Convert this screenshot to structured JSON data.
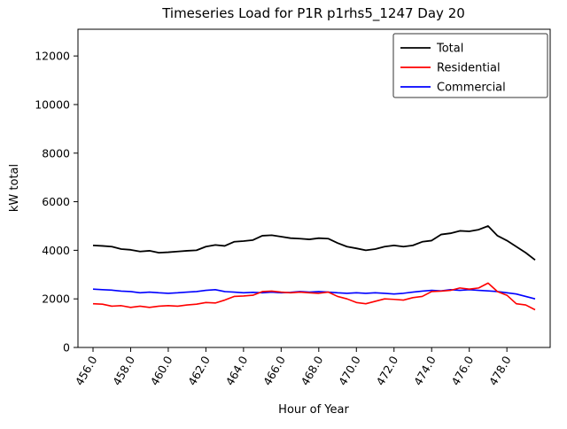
{
  "chart_data": {
    "type": "line",
    "title": "Timeseries Load for P1R p1rhs5_1247  Day 20",
    "xlabel": "Hour of Year",
    "ylabel": "kW total",
    "xlim": [
      455.2,
      480.3
    ],
    "ylim": [
      0,
      13100
    ],
    "grid": false,
    "legend_position": "upper right",
    "x_ticks": [
      456.0,
      458.0,
      460.0,
      462.0,
      464.0,
      466.0,
      468.0,
      470.0,
      472.0,
      474.0,
      476.0,
      478.0
    ],
    "y_ticks": [
      0,
      2000,
      4000,
      6000,
      8000,
      10000,
      12000
    ],
    "x": [
      456.0,
      456.5,
      457.0,
      457.5,
      458.0,
      458.5,
      459.0,
      459.5,
      460.0,
      460.5,
      461.0,
      461.5,
      462.0,
      462.5,
      463.0,
      463.5,
      464.0,
      464.5,
      465.0,
      465.5,
      466.0,
      466.5,
      467.0,
      467.5,
      468.0,
      468.5,
      469.0,
      469.5,
      470.0,
      470.5,
      471.0,
      471.5,
      472.0,
      472.5,
      473.0,
      473.5,
      474.0,
      474.5,
      475.0,
      475.5,
      476.0,
      476.5,
      477.0,
      477.5,
      478.0,
      478.5,
      479.0,
      479.5
    ],
    "series": [
      {
        "name": "Total",
        "color": "#000000",
        "values": [
          4200,
          4180,
          4150,
          4050,
          4020,
          3950,
          3980,
          3900,
          3920,
          3950,
          3980,
          4000,
          4150,
          4220,
          4180,
          4350,
          4380,
          4420,
          4600,
          4620,
          4560,
          4500,
          4480,
          4450,
          4500,
          4480,
          4300,
          4150,
          4080,
          4000,
          4050,
          4150,
          4200,
          4150,
          4200,
          4350,
          4400,
          4650,
          4700,
          4800,
          4780,
          4850,
          5000,
          4600,
          4400,
          4150,
          3900,
          3600
        ]
      },
      {
        "name": "Residential",
        "color": "#ff0000",
        "values": [
          1800,
          1780,
          1700,
          1720,
          1650,
          1700,
          1650,
          1700,
          1720,
          1700,
          1750,
          1780,
          1850,
          1830,
          1950,
          2100,
          2120,
          2150,
          2300,
          2320,
          2280,
          2250,
          2280,
          2250,
          2230,
          2280,
          2100,
          2000,
          1850,
          1800,
          1900,
          2000,
          1980,
          1950,
          2050,
          2100,
          2300,
          2320,
          2350,
          2450,
          2400,
          2450,
          2650,
          2300,
          2150,
          1800,
          1750,
          1550
        ]
      },
      {
        "name": "Commercial",
        "color": "#0000ff",
        "values": [
          2400,
          2380,
          2360,
          2320,
          2300,
          2250,
          2280,
          2250,
          2230,
          2250,
          2280,
          2300,
          2350,
          2380,
          2300,
          2280,
          2250,
          2270,
          2250,
          2280,
          2250,
          2270,
          2300,
          2280,
          2300,
          2280,
          2250,
          2230,
          2250,
          2230,
          2250,
          2230,
          2200,
          2230,
          2280,
          2320,
          2350,
          2330,
          2380,
          2350,
          2380,
          2350,
          2330,
          2300,
          2250,
          2200,
          2100,
          2000
        ]
      }
    ]
  }
}
